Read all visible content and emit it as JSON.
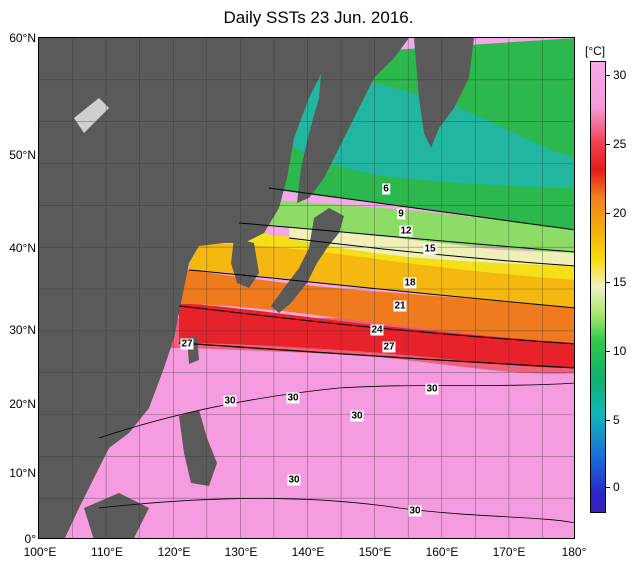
{
  "title": "Daily SSTs 23 Jun. 2016.",
  "y_axis": [
    "60°N",
    "50°N",
    "40°N",
    "30°N",
    "20°N",
    "10°N",
    "0°"
  ],
  "x_axis": [
    "100°E",
    "110°E",
    "120°E",
    "130°E",
    "140°E",
    "150°E",
    "160°E",
    "170°E",
    "180°"
  ],
  "colorbar": {
    "unit": "[°C]",
    "ticks": [
      "30",
      "25",
      "20",
      "15",
      "10",
      "5",
      "0"
    ],
    "range": [
      -2,
      32
    ]
  },
  "contour_labels": [
    "6",
    "9",
    "12",
    "15",
    "18",
    "21",
    "24",
    "27",
    "27",
    "30",
    "30",
    "30",
    "30",
    "30",
    "30"
  ],
  "colors": {
    "land": "#5a5a5a",
    "warm_pool": "#f4a8e8",
    "kuroshio": "#e8222a",
    "subtropic": "#f0a020",
    "mid": "#f5df18",
    "cold": "#2cb84c",
    "okhotsk": "#2ab5a5"
  }
}
